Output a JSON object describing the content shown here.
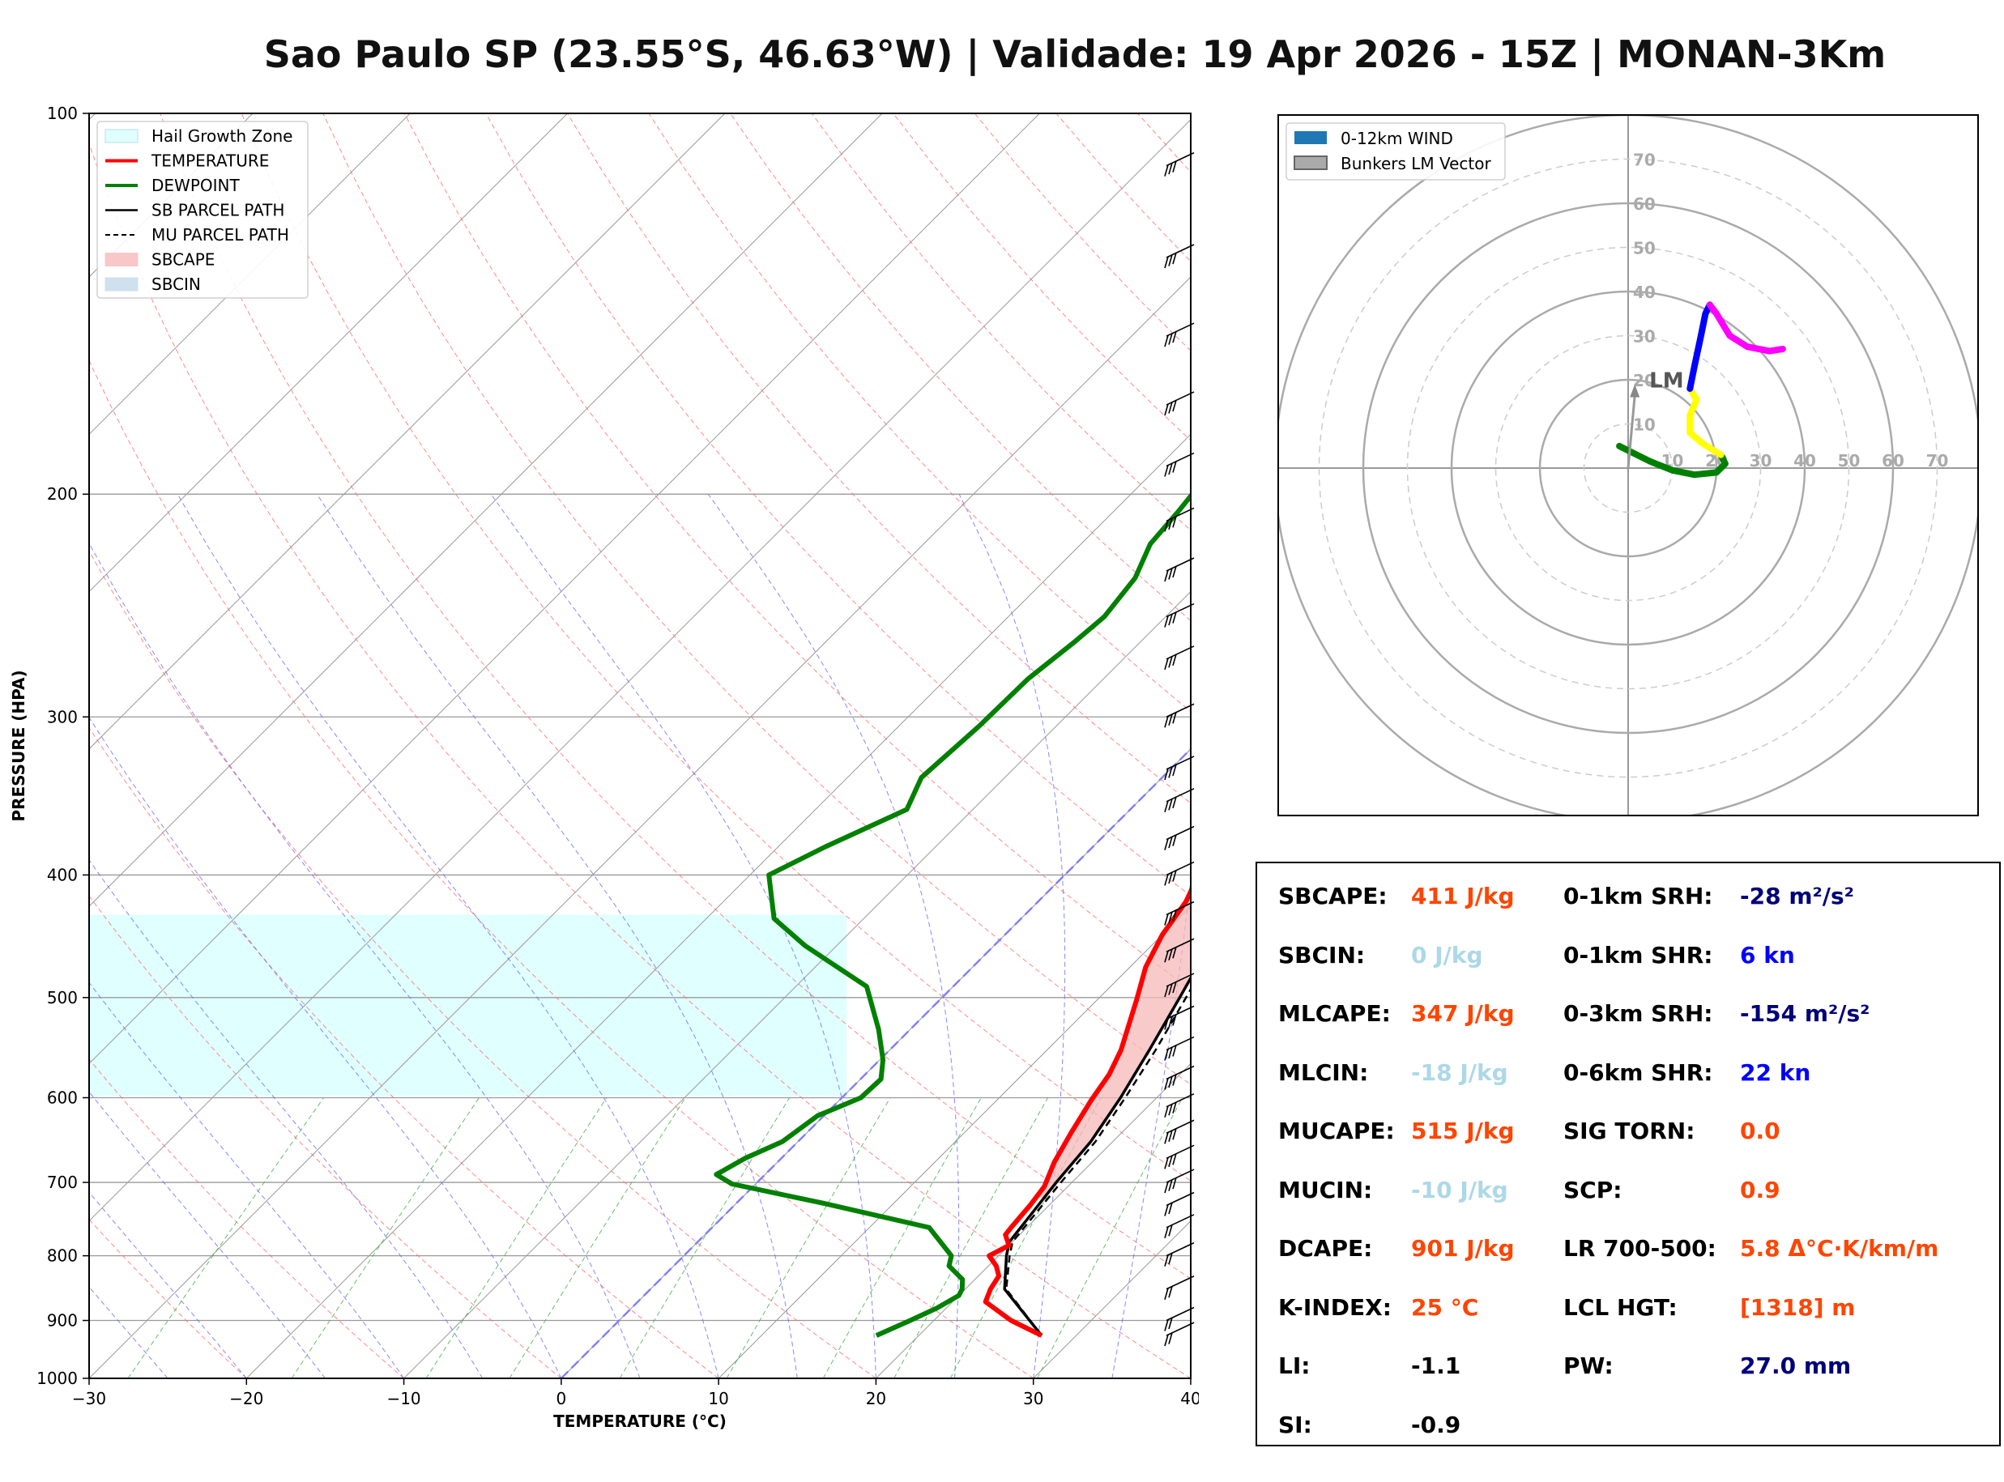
{
  "title": "Sao Paulo SP (23.55°S, 46.63°W) | Validade: 19 Apr 2026 - 15Z | MONAN-3Km",
  "colors": {
    "temperature": "#ff0000",
    "dewpoint": "#008000",
    "sb_parcel": "#000000",
    "sbcape_fill": "#f5b8b8",
    "hail_zone": "#e0ffff",
    "value_orange": "#ff4500",
    "value_lightblue": "#add8e6",
    "value_navy": "#00007a",
    "value_blue": "#0000ff"
  },
  "chart_data": [
    {
      "type": "line",
      "name": "skew-t log-p",
      "xlabel": "TEMPERATURE (°C)",
      "ylabel": "PRESSURE (HPA)",
      "xlim": [
        -30,
        40
      ],
      "ylim": [
        1000,
        100
      ],
      "x_ticks": [
        "−30",
        "−20",
        "−10",
        "0",
        "10",
        "20",
        "30",
        "40"
      ],
      "y_ticks": [
        "100",
        "200",
        "300",
        "400",
        "500",
        "600",
        "700",
        "800",
        "900",
        "1000"
      ],
      "legend": [
        {
          "label": "Hail Growth Zone"
        },
        {
          "label": "TEMPERATURE"
        },
        {
          "label": "DEWPOINT"
        },
        {
          "label": "SB PARCEL PATH"
        },
        {
          "label": "MU PARCEL PATH"
        },
        {
          "label": "SBCAPE"
        },
        {
          "label": "SBCIN"
        }
      ],
      "legend_position": "top-left",
      "hail_growth_zone": {
        "p_top": 430,
        "p_bottom": 598
      },
      "series": [
        {
          "name": "TEMPERATURE",
          "points": [
            [
              27.8,
              925
            ],
            [
              24.9,
              900
            ],
            [
              22.1,
              870
            ],
            [
              21.6,
              850
            ],
            [
              21.3,
              830
            ],
            [
              20.5,
              815
            ],
            [
              19.4,
              800
            ],
            [
              20.0,
              785
            ],
            [
              19.1,
              770
            ],
            [
              19.0,
              760
            ],
            [
              18.9,
              745
            ],
            [
              18.8,
              730
            ],
            [
              18.5,
              705
            ],
            [
              17.6,
              675
            ],
            [
              16.8,
              640
            ],
            [
              16.0,
              603
            ],
            [
              15.5,
              575
            ],
            [
              14.7,
              550
            ],
            [
              12.5,
              502
            ],
            [
              11.0,
              473
            ],
            [
              10.0,
              446
            ],
            [
              9.4,
              420
            ],
            [
              7.8,
              385
            ],
            [
              5.2,
              348
            ],
            [
              3.0,
              315
            ],
            [
              1.2,
              282
            ],
            [
              -1.5,
              255
            ],
            [
              -2.9,
              235
            ],
            [
              -4.3,
              216
            ],
            [
              -4.6,
              200
            ],
            [
              -4.8,
              176
            ],
            [
              -5.0,
              150
            ],
            [
              -4.8,
              130
            ],
            [
              -3.6,
              116
            ],
            [
              -3.1,
              112
            ],
            [
              -4.5,
              106
            ],
            [
              -7.5,
              100
            ]
          ]
        },
        {
          "name": "DEWPOINT",
          "points": [
            [
              17.3,
              925
            ],
            [
              18.5,
              900
            ],
            [
              19.4,
              880
            ],
            [
              20.0,
              860
            ],
            [
              19.8,
              850
            ],
            [
              19.2,
              835
            ],
            [
              17.5,
              815
            ],
            [
              17.0,
              800
            ],
            [
              13.8,
              760
            ],
            [
              5.5,
              727
            ],
            [
              -1.5,
              702
            ],
            [
              -3.1,
              690
            ],
            [
              -2.3,
              670
            ],
            [
              -1.0,
              650
            ],
            [
              -0.4,
              620
            ],
            [
              1.2,
              600
            ],
            [
              1.3,
              580
            ],
            [
              0.2,
              560
            ],
            [
              -2.0,
              530
            ],
            [
              -5.5,
              490
            ],
            [
              -12.0,
              455
            ],
            [
              -15.7,
              433
            ],
            [
              -18.8,
              400
            ],
            [
              -17.0,
              380
            ],
            [
              -14.2,
              355
            ],
            [
              -15.3,
              335
            ],
            [
              -14.9,
              305
            ],
            [
              -14.8,
              280
            ],
            [
              -14.2,
              262
            ],
            [
              -13.9,
              250
            ],
            [
              -14.4,
              233
            ],
            [
              -15.6,
              219
            ],
            [
              -15.9,
              206
            ],
            [
              -16.1,
              200
            ],
            [
              -16.4,
              190
            ],
            [
              -16.0,
              179
            ],
            [
              -15.6,
              170
            ],
            [
              -14.8,
              160
            ],
            [
              -13.4,
              150
            ],
            [
              -12.0,
              140
            ],
            [
              -11.0,
              132
            ],
            [
              -9.4,
              124
            ],
            [
              -8.0,
              118
            ],
            [
              -7.0,
              114
            ],
            [
              -4.7,
              108
            ],
            [
              -3.3,
              100
            ]
          ]
        },
        {
          "name": "SB PARCEL PATH",
          "points": [
            [
              27.8,
              925
            ],
            [
              22.5,
              850
            ],
            [
              20.5,
              800
            ],
            [
              19.8,
              780
            ],
            [
              19.0,
              700
            ],
            [
              18.6,
              650
            ],
            [
              17.7,
              600
            ],
            [
              16.5,
              550
            ],
            [
              15.1,
              500
            ],
            [
              13.5,
              450
            ],
            [
              11.3,
              400
            ],
            [
              8.8,
              350
            ],
            [
              5.8,
              300
            ],
            [
              2.6,
              255
            ],
            [
              -0.4,
              220
            ],
            [
              -3.6,
              190
            ],
            [
              -6.3,
              170
            ],
            [
              -9.2,
              150
            ],
            [
              -13.0,
              130
            ],
            [
              -17.5,
              110
            ],
            [
              -18.9,
              100
            ]
          ]
        },
        {
          "name": "MU PARCEL PATH",
          "points": [
            [
              27.8,
              925
            ],
            [
              22.6,
              850
            ],
            [
              20.7,
              800
            ],
            [
              20.0,
              780
            ],
            [
              19.3,
              700
            ],
            [
              18.9,
              650
            ],
            [
              18.0,
              600
            ],
            [
              16.9,
              550
            ],
            [
              15.5,
              500
            ],
            [
              13.9,
              450
            ],
            [
              11.8,
              400
            ],
            [
              9.3,
              350
            ],
            [
              6.2,
              300
            ],
            [
              3.1,
              255
            ],
            [
              0.1,
              220
            ],
            [
              -3.1,
              190
            ],
            [
              -5.8,
              170
            ],
            [
              -8.6,
              150
            ],
            [
              -12.4,
              130
            ],
            [
              -17.0,
              110
            ],
            [
              -18.5,
              100
            ]
          ]
        }
      ],
      "wind_barbs_pressures": [
        925,
        900,
        850,
        800,
        760,
        730,
        700,
        670,
        640,
        610,
        580,
        550,
        520,
        490,
        460,
        430,
        400,
        375,
        350,
        330,
        300,
        270,
        250,
        230,
        210,
        190,
        170,
        150,
        130,
        110
      ]
    },
    {
      "type": "line",
      "name": "hodograph",
      "legend": [
        {
          "label": "0-12km WIND"
        },
        {
          "label": "Bunkers LM Vector"
        }
      ],
      "legend_position": "top-left",
      "ring_labels_x": [
        "10",
        "20",
        "30",
        "40",
        "50",
        "60",
        "70"
      ],
      "ring_labels_y": [
        "10",
        "20",
        "30",
        "40",
        "50",
        "60",
        "70"
      ],
      "range": 80,
      "lm_label": "LM",
      "bunkers_lm": [
        1.5,
        19
      ],
      "segments": [
        {
          "color": "#008000",
          "points": [
            [
              -2,
              5
            ],
            [
              1,
              3.5
            ],
            [
              5,
              1.5
            ],
            [
              10,
              -0.5
            ],
            [
              15,
              -1.5
            ],
            [
              20,
              -1
            ],
            [
              22,
              1
            ],
            [
              21,
              3
            ]
          ]
        },
        {
          "color": "#ffff00",
          "points": [
            [
              21,
              3
            ],
            [
              17,
              5.5
            ],
            [
              14,
              8
            ],
            [
              14,
              12
            ],
            [
              15.5,
              15.5
            ],
            [
              14,
              18
            ]
          ]
        },
        {
          "color": "#0000ff",
          "points": [
            [
              14,
              18
            ],
            [
              15,
              23
            ],
            [
              16.5,
              30
            ],
            [
              17.5,
              35
            ],
            [
              18.5,
              37
            ]
          ]
        },
        {
          "color": "#ff00ff",
          "points": [
            [
              18.5,
              37
            ],
            [
              20,
              35
            ],
            [
              23,
              30
            ],
            [
              27,
              27.5
            ],
            [
              32,
              26.5
            ],
            [
              35,
              27
            ]
          ]
        }
      ]
    }
  ],
  "params": {
    "left": [
      {
        "label": "SBCAPE:",
        "value": "411 J/kg",
        "tone": "orange"
      },
      {
        "label": "SBCIN:",
        "value": "0 J/kg",
        "tone": "lightblue"
      },
      {
        "label": "MLCAPE:",
        "value": "347 J/kg",
        "tone": "orange"
      },
      {
        "label": "MLCIN:",
        "value": "-18 J/kg",
        "tone": "lightblue"
      },
      {
        "label": "MUCAPE:",
        "value": "515 J/kg",
        "tone": "orange"
      },
      {
        "label": "MUCIN:",
        "value": "-10 J/kg",
        "tone": "lightblue"
      },
      {
        "label": "DCAPE:",
        "value": "901 J/kg",
        "tone": "orange"
      },
      {
        "label": "K-INDEX:",
        "value": "25 °C",
        "tone": "orange"
      },
      {
        "label": "LI:",
        "value": "-1.1",
        "tone": "black"
      },
      {
        "label": "SI:",
        "value": "-0.9",
        "tone": "black"
      }
    ],
    "right": [
      {
        "label": "0-1km SRH:",
        "value": "-28 m²/s²",
        "tone": "navy"
      },
      {
        "label": "0-1km SHR:",
        "value": "6 kn",
        "tone": "blue"
      },
      {
        "label": "0-3km SRH:",
        "value": "-154 m²/s²",
        "tone": "navy"
      },
      {
        "label": "0-6km SHR:",
        "value": "22 kn",
        "tone": "blue"
      },
      {
        "label": "SIG TORN:",
        "value": "0.0",
        "tone": "orange"
      },
      {
        "label": "SCP:",
        "value": "0.9",
        "tone": "orange"
      },
      {
        "label": "LR 700-500:",
        "value": "5.8 Δ°C·K/km/m",
        "tone": "orange"
      },
      {
        "label": "LCL HGT:",
        "value": "[1318] m",
        "tone": "orange"
      },
      {
        "label": "PW:",
        "value": "27.0 mm",
        "tone": "navy"
      }
    ]
  }
}
